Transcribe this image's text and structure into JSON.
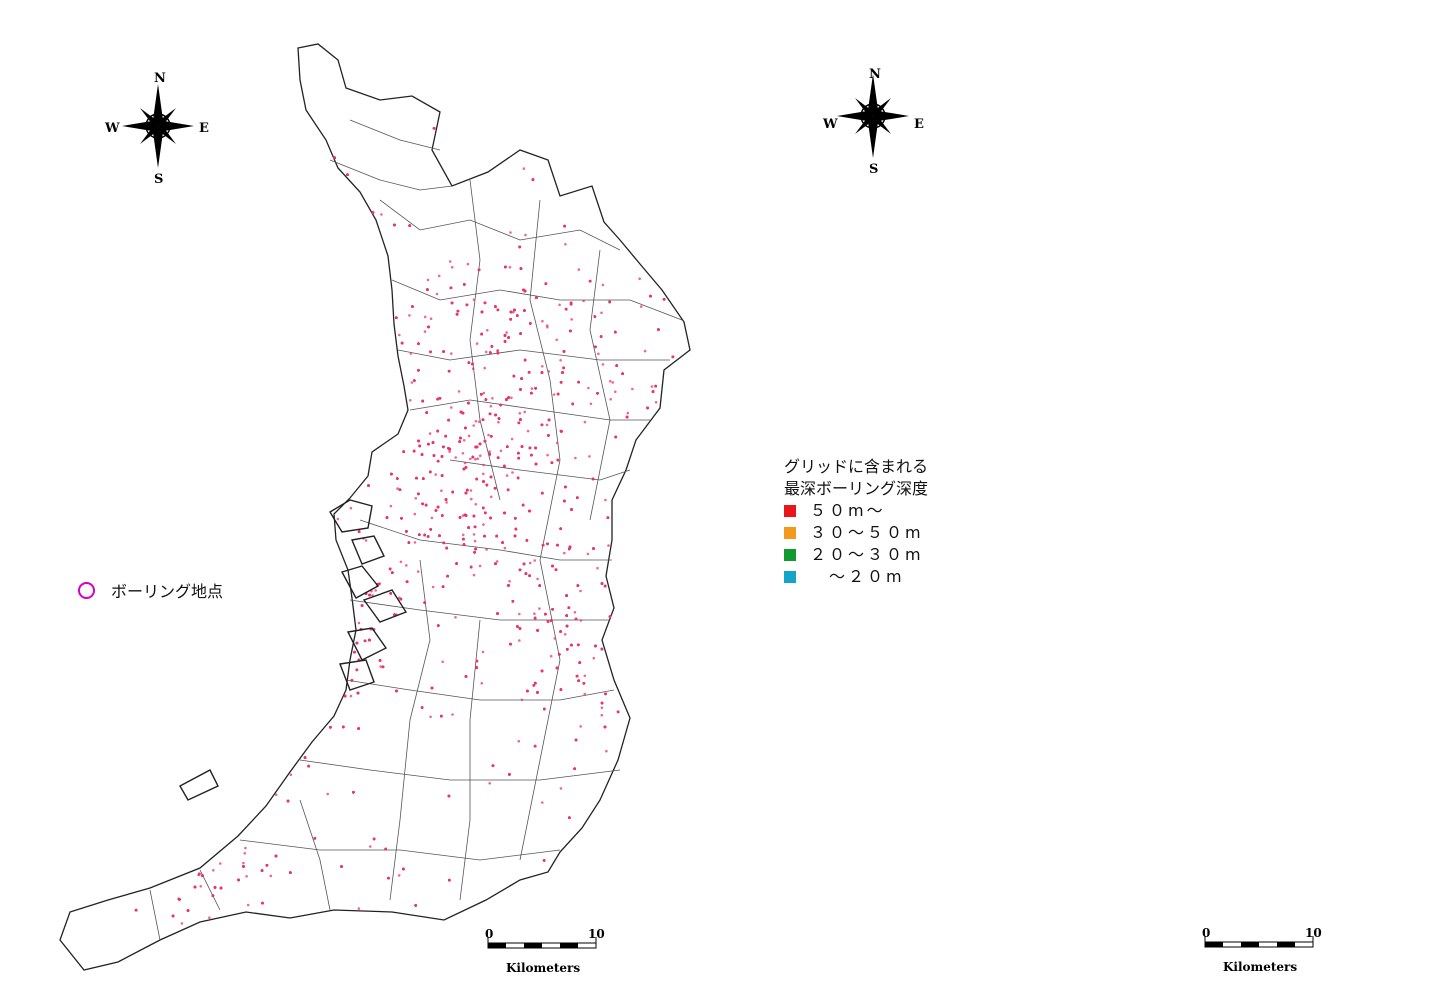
{
  "left_map": {
    "compass": {
      "n": "N",
      "s": "S",
      "e": "E",
      "w": "W"
    },
    "legend": {
      "label": "ボーリング地点",
      "marker_color": "#d400c8",
      "point_color": "#e8356a"
    },
    "scale": {
      "start": "0",
      "end": "10",
      "unit": "Kilometers"
    }
  },
  "right_map": {
    "compass": {
      "n": "N",
      "s": "S",
      "e": "E",
      "w": "W"
    },
    "legend": {
      "title_line1": "グリッドに含まれる",
      "title_line2": "最深ボーリング深度",
      "items": [
        {
          "label": "５０m～",
          "color": "#e8171b"
        },
        {
          "label": "３０～５０m",
          "color": "#f29a1c"
        },
        {
          "label": "２０～３０m",
          "color": "#129a30"
        },
        {
          "label": "　～２０m",
          "color": "#15a3c7"
        }
      ]
    },
    "scale": {
      "start": "0",
      "end": "10",
      "unit": "Kilometers"
    }
  },
  "colors": {
    "boundary": "#333333",
    "background": "#ffffff"
  }
}
